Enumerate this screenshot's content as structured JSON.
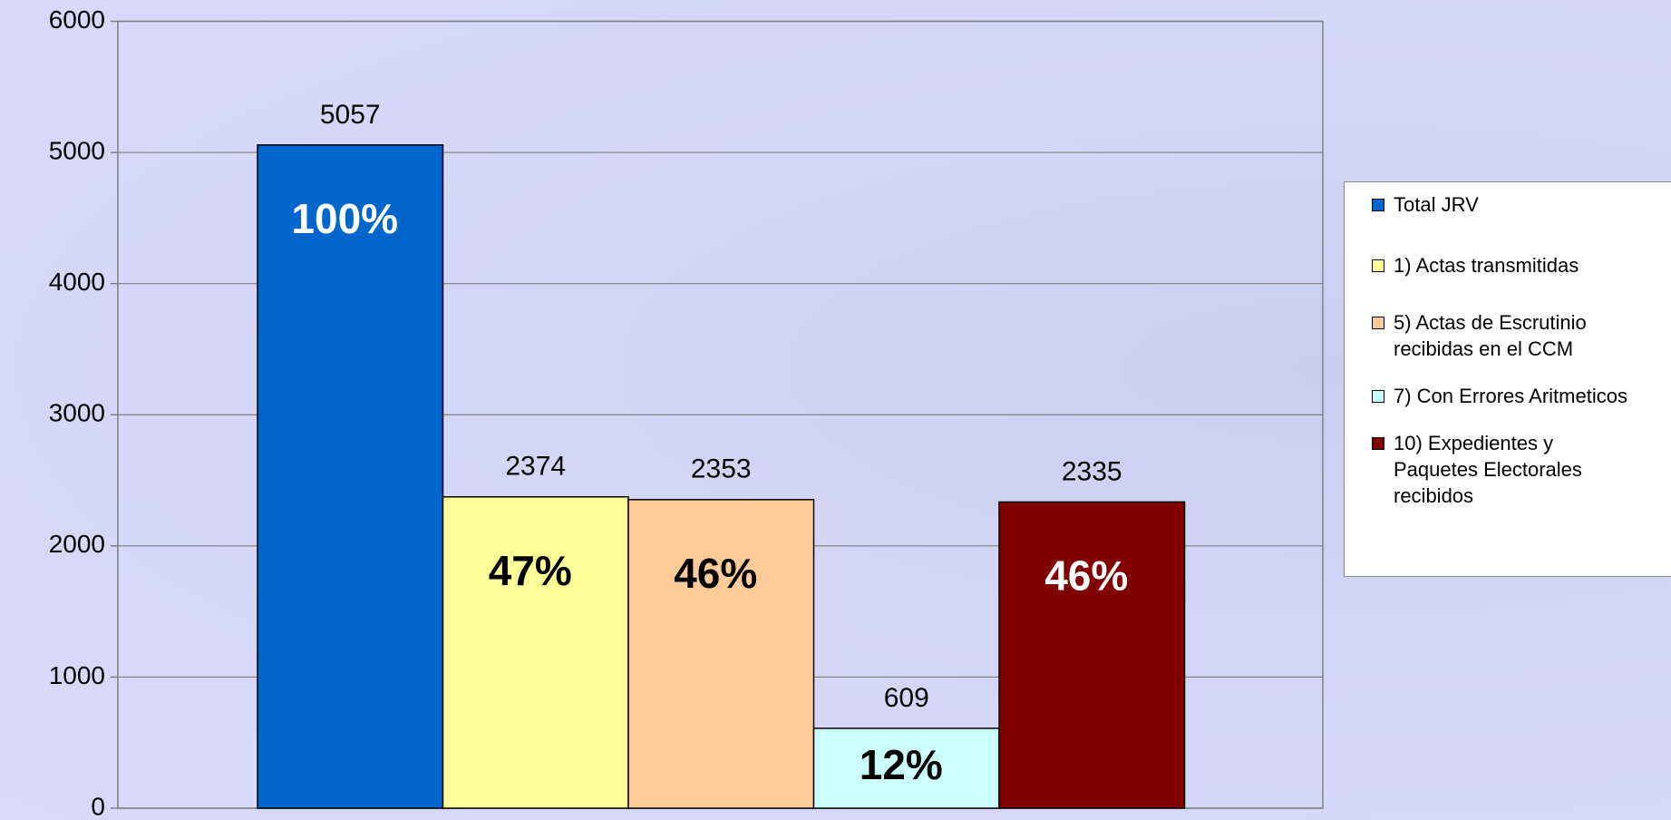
{
  "chart_data": {
    "type": "bar",
    "series": [
      {
        "name": "Total JRV",
        "color": "#0066cc",
        "values": [
          5057
        ],
        "percent_labels": [
          "100%"
        ]
      },
      {
        "name": "1)  Actas transmitidas",
        "color": "#ffff99",
        "values": [
          2374
        ],
        "percent_labels": [
          "47%"
        ]
      },
      {
        "name": "5)  Actas de Escrutinio recibidas en el CCM",
        "color": "#ffcc99",
        "values": [
          2353
        ],
        "percent_labels": [
          "46%"
        ]
      },
      {
        "name": "7)  Con Errores Aritmeticos",
        "color": "#ccffff",
        "values": [
          609
        ],
        "percent_labels": [
          "12%"
        ]
      },
      {
        "name": "10)  Expedientes y Paquetes Electorales recibidos",
        "color": "#800000",
        "values": [
          2335
        ],
        "percent_labels": [
          "46%"
        ]
      }
    ],
    "ylim": [
      0,
      6000
    ],
    "yticks": [
      0,
      1000,
      2000,
      3000,
      4000,
      5000,
      6000
    ],
    "grid": true,
    "legend": "right"
  }
}
